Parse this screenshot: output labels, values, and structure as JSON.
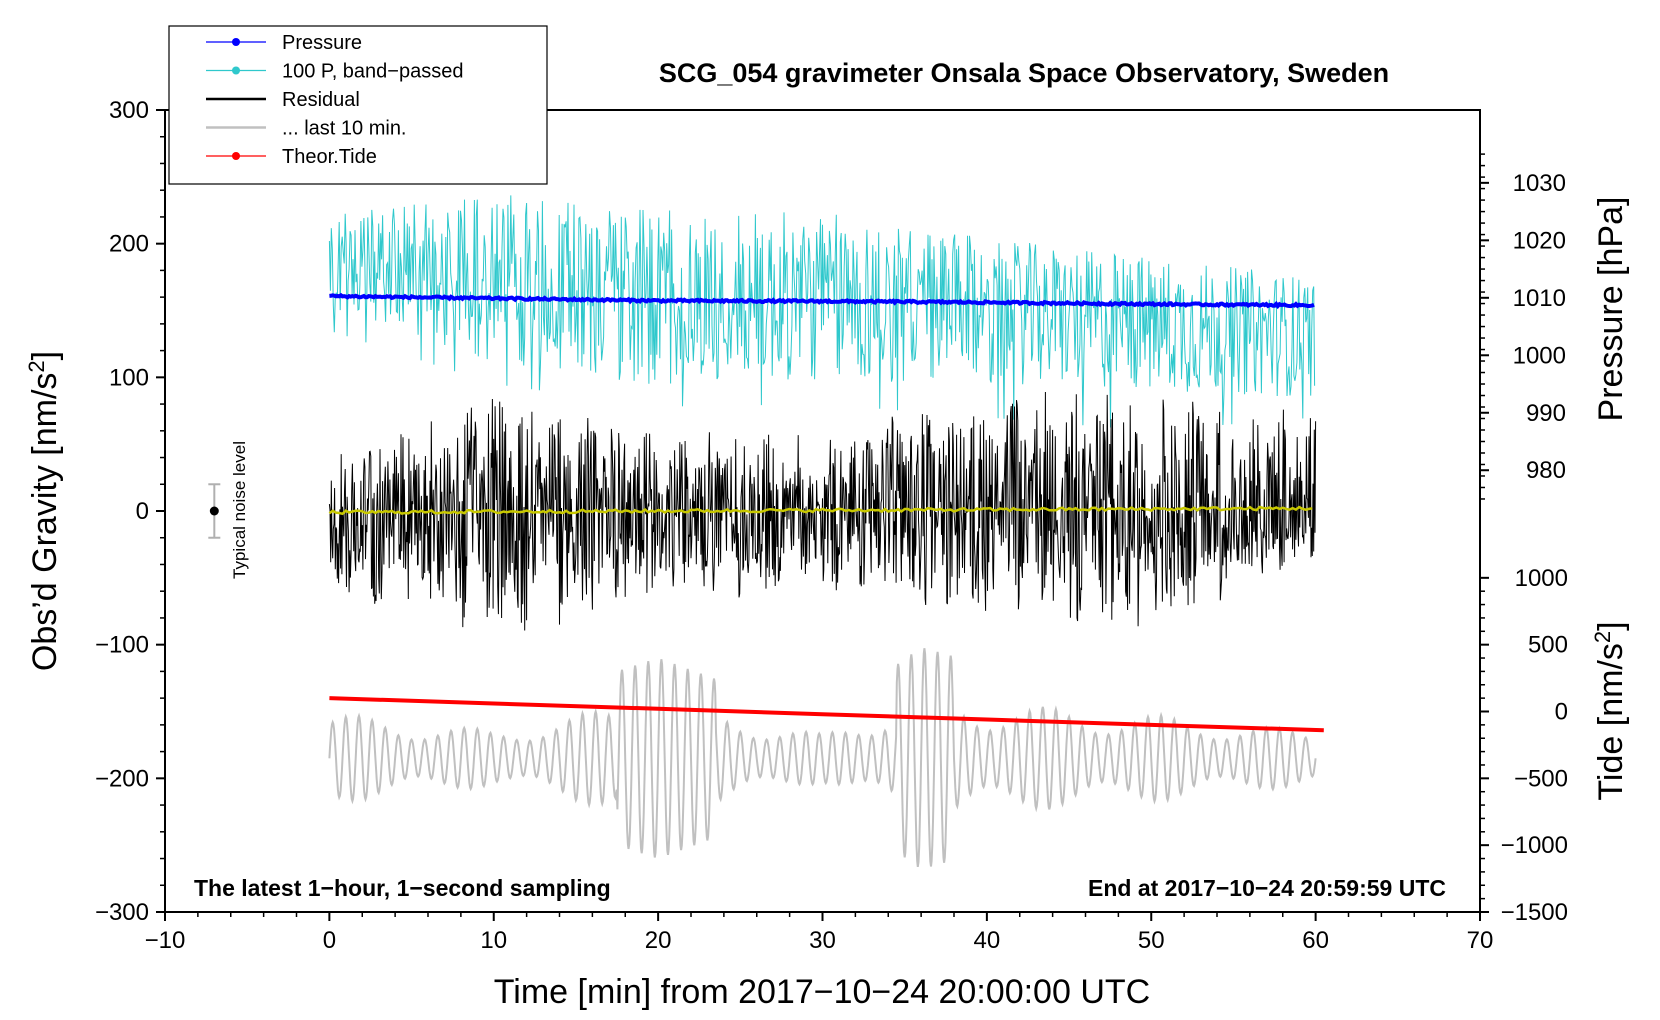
{
  "chart_data": {
    "type": "line",
    "title": "SCG_054 gravimeter Onsala Space Observatory, Sweden",
    "xlabel": "Time [min] from 2017−10−24 20:00:00 UTC",
    "ylabel_left": "Obs’d Gravity [nm/s",
    "ylabel_right_top": "Pressure [hPa]",
    "ylabel_right_bottom": "Tide [nm/s",
    "unit_superscript": "2",
    "unit_close": "]",
    "xlim": [
      -10,
      70
    ],
    "ylim_left": [
      -300,
      300
    ],
    "x_ticks": [
      -10,
      0,
      10,
      20,
      30,
      40,
      50,
      60,
      70
    ],
    "x_tick_labels": [
      "−10",
      "0",
      "10",
      "20",
      "30",
      "40",
      "50",
      "60",
      "70"
    ],
    "y_ticks_left": [
      300,
      200,
      100,
      0,
      -100,
      -200,
      -300
    ],
    "y_tick_labels_left": [
      "300",
      "200",
      "100",
      "0",
      "−100",
      "−200",
      "−300"
    ],
    "pressure_axis": {
      "ticks": [
        1030,
        1020,
        1010,
        1000,
        990,
        980
      ],
      "labels": [
        "1030",
        "1020",
        "1010",
        "1000",
        "990",
        "980"
      ],
      "scale": {
        "value_a": 1030,
        "gravity_a": 245.5,
        "value_b": 980,
        "gravity_b": 30.5
      }
    },
    "tide_axis": {
      "ticks": [
        1000,
        500,
        0,
        -500,
        -1000,
        -1500
      ],
      "labels": [
        "1000",
        "500",
        "0",
        "−500",
        "−1000",
        "−1500"
      ],
      "scale": {
        "value_a": 1000,
        "gravity_a": -50,
        "value_b": -1500,
        "gravity_b": -300
      }
    },
    "annotations": {
      "bottom_left": "The latest 1−hour, 1−second sampling",
      "bottom_right": "End at 2017−10−24 20:59:59 UTC",
      "noise_label": "Typical noise level"
    },
    "legend": {
      "position": "top-left",
      "entries": [
        {
          "label": "Pressure",
          "color": "#0000ff",
          "marker": true
        },
        {
          "label": "100 P, band−passed",
          "color": "#2fc8cc",
          "marker": true
        },
        {
          "label": "Residual",
          "color": "#000000",
          "marker": false
        },
        {
          "label": "... last 10 min.",
          "color": "#c0c0c0",
          "marker": false
        },
        {
          "label": "Theor.Tide",
          "color": "#ff0000",
          "marker": true
        }
      ]
    },
    "noise_bar": {
      "x": -7,
      "center": 0,
      "low": -20,
      "high": 20
    },
    "series": [
      {
        "name": "Pressure",
        "axis": "pressure_hPa",
        "color": "#0000ff",
        "x": [
          0,
          10,
          20,
          30,
          40,
          50,
          60
        ],
        "values": [
          1010.3,
          1009.9,
          1009.5,
          1009.4,
          1009.2,
          1008.9,
          1008.7
        ]
      },
      {
        "name": "Theor.Tide",
        "axis": "tide_nm_s2",
        "color": "#ff0000",
        "x": [
          0,
          10,
          20,
          30,
          40,
          50,
          60.5
        ],
        "values": [
          100,
          60,
          20,
          -20,
          -60,
          -100,
          -140
        ]
      },
      {
        "name": "100 P, band−passed",
        "axis": "gravity_nm_s2",
        "color": "#2fc8cc",
        "x": [
          0,
          10,
          20,
          30,
          40,
          50,
          60
        ],
        "values_center": [
          185,
          175,
          158,
          160,
          150,
          140,
          130
        ],
        "values_min": [
          135,
          95,
          78,
          80,
          70,
          60,
          70
        ],
        "values_max": [
          215,
          235,
          225,
          222,
          190,
          175,
          170
        ]
      },
      {
        "name": "Residual",
        "axis": "gravity_nm_s2",
        "color": "#000000",
        "x": [
          0,
          10,
          20,
          30,
          40,
          50,
          60
        ],
        "values_center": [
          0,
          0,
          0,
          0,
          0,
          0,
          0
        ],
        "values_min": [
          -60,
          -95,
          -65,
          -60,
          -80,
          -95,
          -35
        ],
        "values_max": [
          40,
          87,
          60,
          55,
          88,
          85,
          75
        ]
      },
      {
        "name": "Residual smoothed",
        "axis": "gravity_nm_s2",
        "color": "#c8c800",
        "x": [
          0,
          20,
          40,
          60
        ],
        "values": [
          -1,
          0,
          1,
          2
        ]
      },
      {
        "name": "... last 10 min.",
        "axis": "gravity_nm_s2",
        "color": "#c0c0c0",
        "x": [
          0,
          10,
          20,
          30,
          36,
          50,
          60
        ],
        "values_center": [
          -185,
          -185,
          -185,
          -185,
          -185,
          -185,
          -185
        ],
        "values_min": [
          -230,
          -215,
          -260,
          -215,
          -268,
          -220,
          -220
        ],
        "values_max": [
          -128,
          -150,
          -110,
          -155,
          -110,
          -130,
          -152
        ]
      }
    ]
  }
}
